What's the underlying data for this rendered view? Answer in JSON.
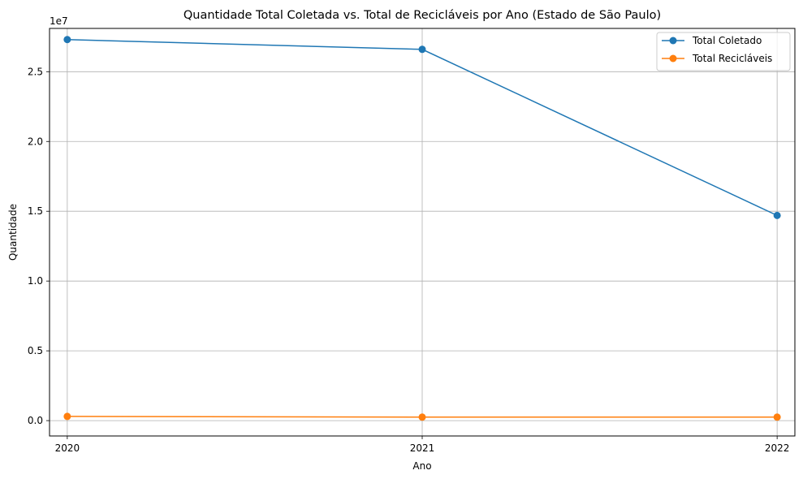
{
  "chart_data": {
    "type": "line",
    "title": "Quantidade Total Coletada vs. Total de Recicláveis por Ano (Estado de São Paulo)",
    "xlabel": "Ano",
    "ylabel": "Quantidade",
    "y_offset_label": "1e7",
    "categories": [
      "2020",
      "2021",
      "2022"
    ],
    "x": [
      2020,
      2021,
      2022
    ],
    "xlim": [
      2019.95,
      2022.05
    ],
    "ylim": [
      -1100000,
      28100000
    ],
    "yticks": [
      0,
      5000000,
      10000000,
      15000000,
      20000000,
      25000000
    ],
    "ytick_labels": [
      "0.0",
      "0.5",
      "1.0",
      "1.5",
      "2.0",
      "2.5"
    ],
    "grid": true,
    "legend_position": "upper right",
    "series": [
      {
        "name": "Total Coletado",
        "color": "#1f77b4",
        "marker": "circle",
        "values": [
          27300000,
          26600000,
          14700000
        ]
      },
      {
        "name": "Total Recicláveis",
        "color": "#ff7f0e",
        "marker": "circle",
        "values": [
          300000,
          250000,
          250000
        ]
      }
    ]
  }
}
